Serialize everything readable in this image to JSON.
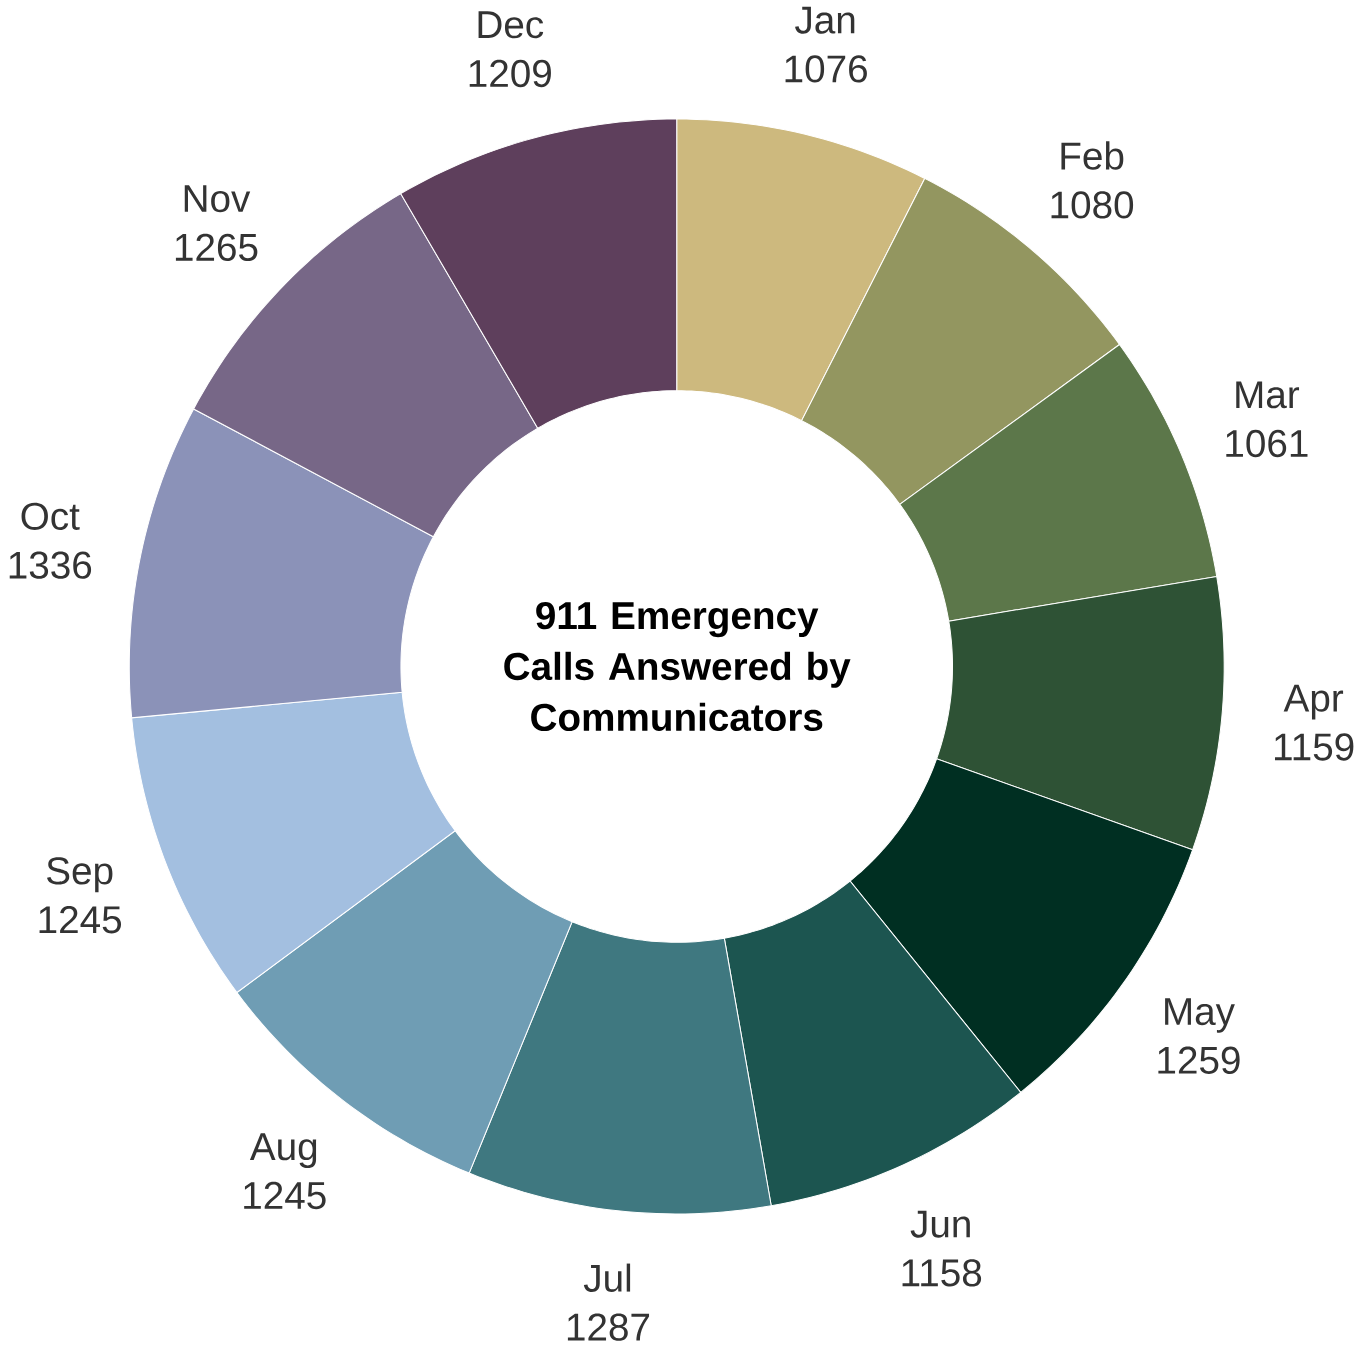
{
  "chart_data": {
    "type": "donut",
    "title": "911 Emergency Calls Answered by Communicators",
    "categories": [
      "Jan",
      "Feb",
      "Mar",
      "Apr",
      "May",
      "Jun",
      "Jul",
      "Aug",
      "Sep",
      "Oct",
      "Nov",
      "Dec"
    ],
    "values": [
      1076,
      1080,
      1061,
      1159,
      1259,
      1158,
      1287,
      1245,
      1245,
      1336,
      1265,
      1209
    ],
    "colors": [
      "#cdb97e",
      "#939660",
      "#5c774a",
      "#2e5235",
      "#002f22",
      "#1c5550",
      "#3f7880",
      "#6f9db4",
      "#a3bfe0",
      "#8b92b8",
      "#776787",
      "#5e3f5c"
    ],
    "data_labels": true
  }
}
